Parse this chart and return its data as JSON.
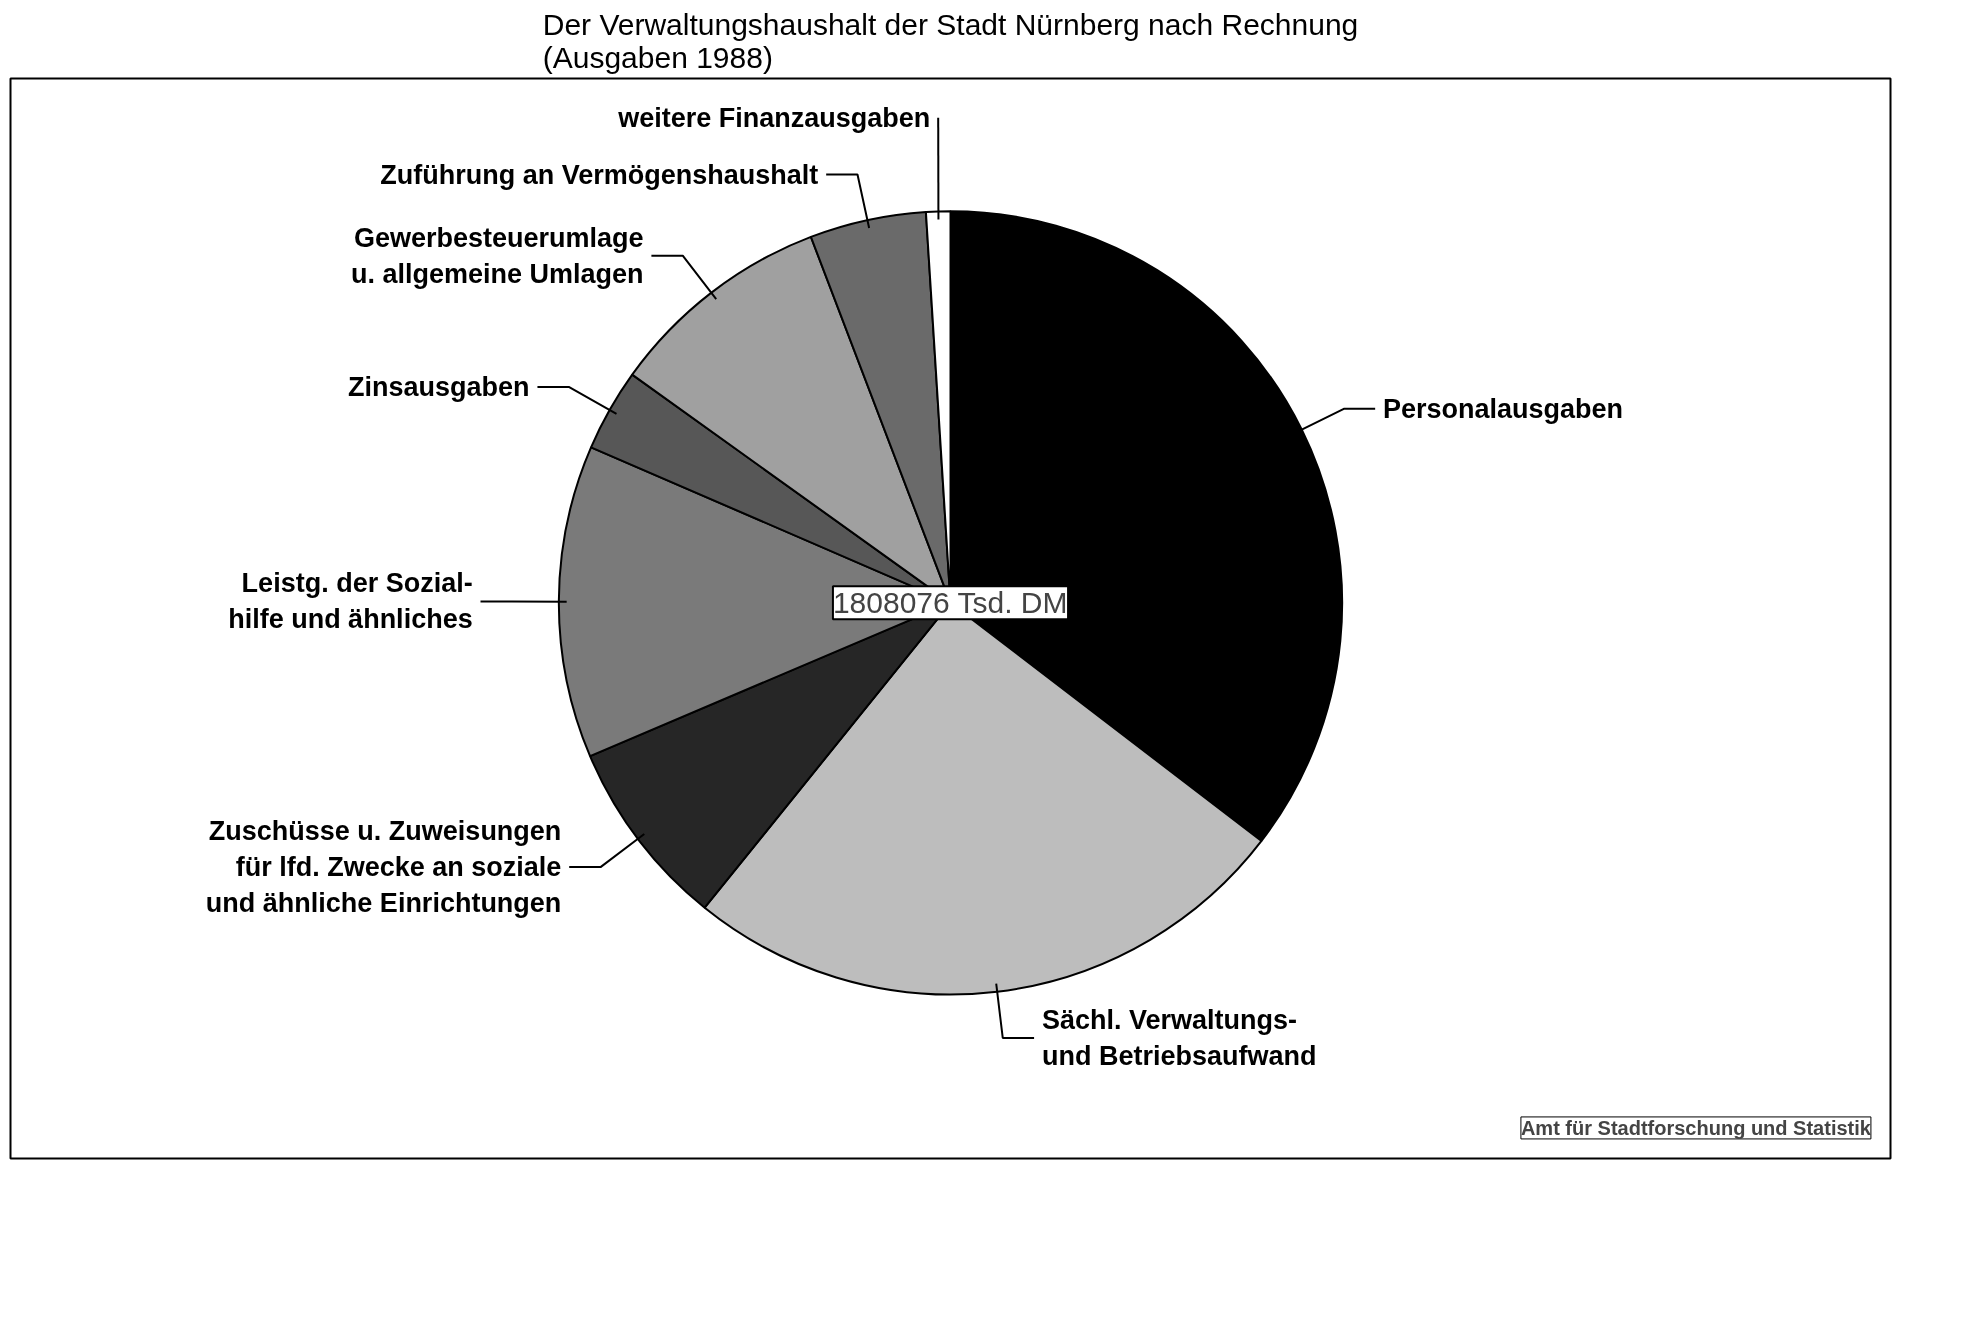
{
  "chart_data": {
    "type": "pie",
    "title": "Der Verwaltungshaushalt der Stadt Nürnberg nach Rechnung\n(Ausgaben 1988)",
    "categories": [
      "Personalausgaben",
      "Sächl. Verwaltungs-\nund Betriebsaufwand",
      "Zuschüsse u. Zuweisungen\nfür lfd. Zwecke an soziale\nund ähnliche Einrichtungen",
      "Leistg. der Sozial-\nhilfe und ähnliches",
      "Zinsausgaben",
      "Gewerbesteuerumlage\nu. allgemeine Umlagen",
      "Zuführung an Vermögenshaushalt",
      "weitere Finanzausgaben"
    ],
    "values": [
      35.4,
      25.4,
      7.8,
      12.9,
      3.4,
      9.3,
      4.8,
      1.0
    ],
    "colors": [
      "#000000",
      "#bdbdbd",
      "#262626",
      "#7a7a7a",
      "#575757",
      "#a0a0a0",
      "#6a6a6a",
      "#ffffff"
    ],
    "annotations": [
      "1808076 Tsd. DM",
      "Amt für Stadtforschung und Statistik"
    ]
  }
}
